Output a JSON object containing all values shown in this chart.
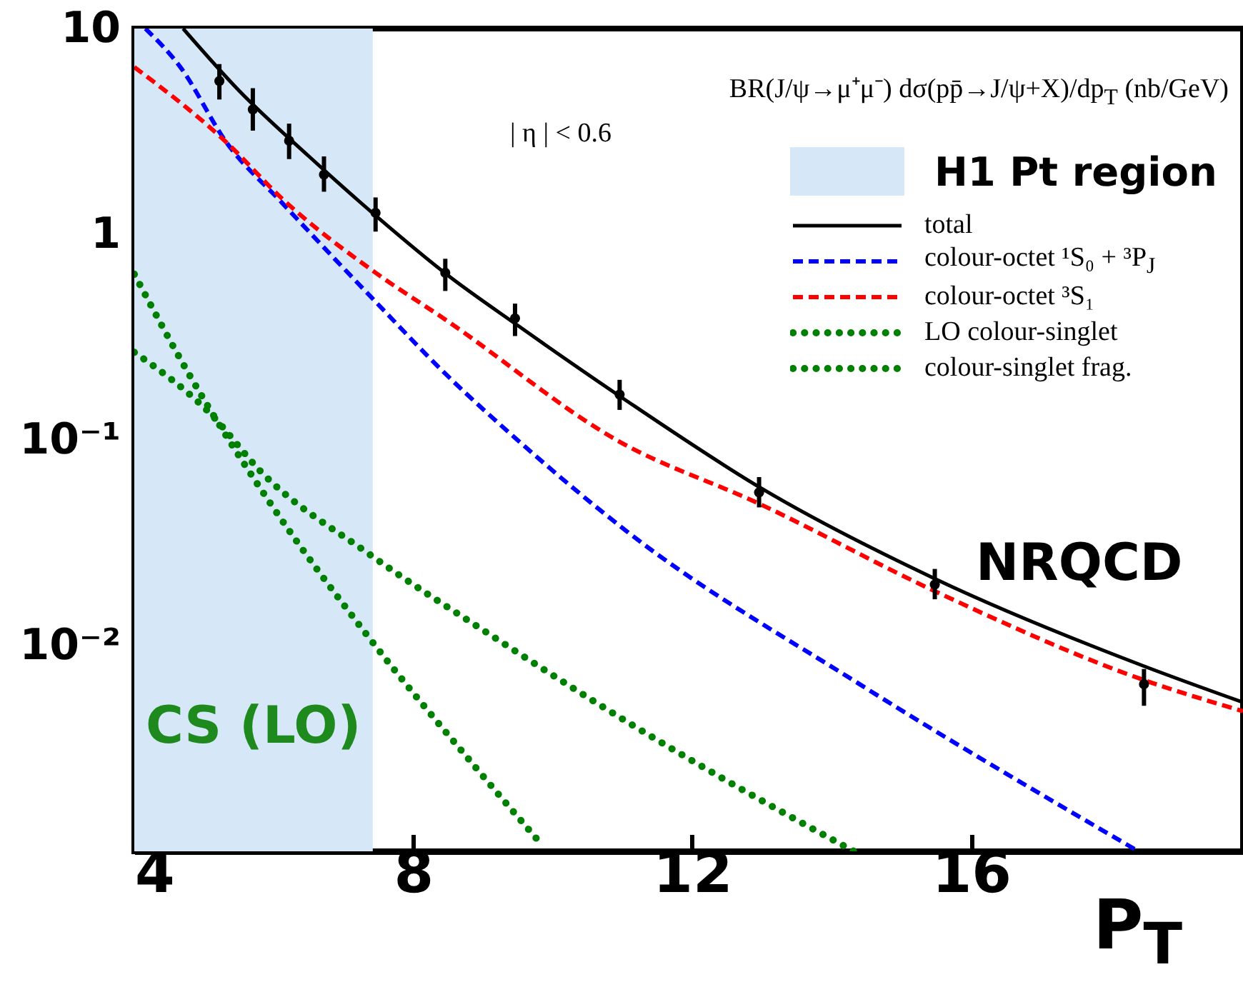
{
  "chart_data": {
    "type": "line",
    "log": "y",
    "xlim": [
      4,
      19.9
    ],
    "ylim": [
      0.001,
      10
    ],
    "xticks": [
      4,
      8,
      12,
      16
    ],
    "yticks": [
      {
        "value": 0.01,
        "label": "10⁻²"
      },
      {
        "value": 0.1,
        "label": "10⁻¹"
      },
      1,
      10
    ],
    "xlabel": "P$_{T}$",
    "legend": "top right",
    "grid": false,
    "annotations": [
      "BR(J/ψ→μ⁺μ⁻) dσ(pp̄→J/ψ+X)/dp$_{T}$ (nb/GeV)",
      "| η | < 0.6",
      "NRQCD",
      "CS (LO)",
      "H1 Pt region"
    ],
    "bands": [
      {
        "axis": "x",
        "from": 4,
        "to": 7.42,
        "color": "#d6e8f7"
      }
    ],
    "series": [
      {
        "name": "total",
        "color": "#000000",
        "line_style": "solid",
        "x": [
          4.7,
          5.5,
          6.5,
          7.5,
          8.5,
          9.5,
          11,
          13,
          15.5,
          18.5,
          19.9
        ],
        "values": [
          10,
          5,
          2.4,
          1.2,
          0.63,
          0.36,
          0.16,
          0.058,
          0.021,
          0.0079,
          0.0053
        ]
      },
      {
        "name": "colour-octet ¹S₀ + ³P$_{J}$",
        "color": "#0000ff",
        "line_style": "dashed",
        "x": [
          4.16,
          4.66,
          5.32,
          6.12,
          7.46,
          8.46,
          9.6,
          11.06,
          14.4,
          18.4
        ],
        "values": [
          10,
          6.5,
          2.8,
          1.42,
          0.47,
          0.21,
          0.093,
          0.036,
          0.0065,
          0.001
        ]
      },
      {
        "name": "colour-octet ³S₁",
        "color": "#ff0000",
        "line_style": "dashed",
        "x": [
          4,
          5.32,
          6.12,
          7.46,
          8.46,
          10.96,
          12.96,
          15.48,
          18.48,
          19.9
        ],
        "values": [
          6.5,
          2.8,
          1.49,
          0.65,
          0.385,
          0.098,
          0.049,
          0.0184,
          0.0068,
          0.0048
        ]
      },
      {
        "name": "LO colour-singlet",
        "color": "#008000",
        "line_style": "dotted",
        "x": [
          4,
          4.78,
          5.92,
          7.36,
          8.92,
          9.82
        ],
        "values": [
          0.64,
          0.21,
          0.051,
          0.011,
          0.0025,
          0.0011
        ]
      },
      {
        "name": "colour-singlet frag.",
        "color": "#008000",
        "line_style": "dotted",
        "x": [
          4,
          5.12,
          5.8,
          7.36,
          9.12,
          11.2,
          12.4,
          14.32
        ],
        "values": [
          0.267,
          0.131,
          0.071,
          0.028,
          0.0112,
          0.004,
          0.0023,
          0.001
        ]
      },
      {
        "type": "scatter",
        "color": "#000000",
        "marker": "circle",
        "x": [
          5.22,
          5.7,
          6.22,
          6.72,
          7.46,
          8.46,
          9.46,
          10.96,
          12.96,
          15.48,
          18.48
        ],
        "values": [
          5.56,
          4.04,
          2.85,
          1.95,
          1.27,
          0.65,
          0.39,
          0.166,
          0.0556,
          0.0198,
          0.0065
        ],
        "errors": [
          [
            4.52,
            6.72
          ],
          [
            3.19,
            5.13
          ],
          [
            2.32,
            3.45
          ],
          [
            1.61,
            2.39
          ],
          [
            1.03,
            1.51
          ],
          [
            0.53,
            0.76
          ],
          [
            0.32,
            0.46
          ],
          [
            0.14,
            0.196
          ],
          [
            0.047,
            0.066
          ],
          [
            0.0168,
            0.0236
          ],
          [
            0.0051,
            0.0077
          ]
        ]
      }
    ]
  }
}
